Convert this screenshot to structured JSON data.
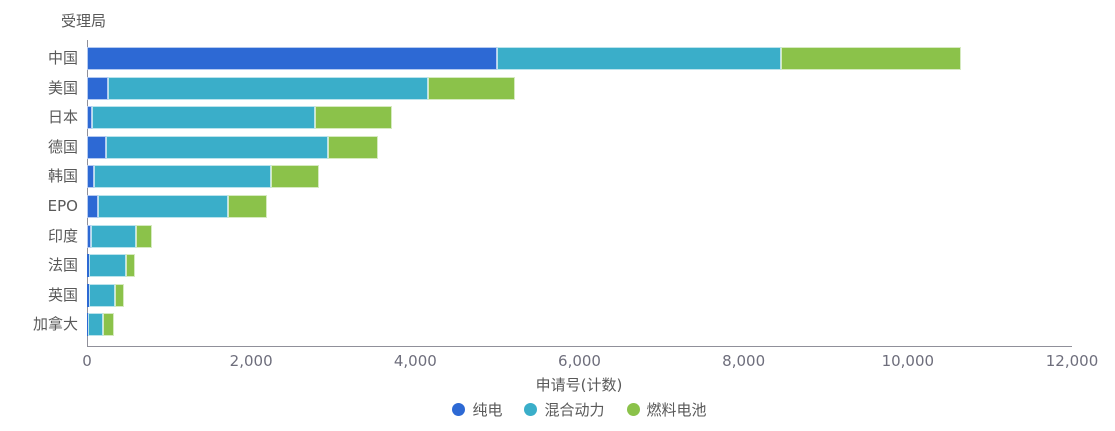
{
  "chart_data": {
    "type": "bar",
    "orientation": "horizontal",
    "stacked": true,
    "title": "受理局",
    "xlabel": "申请号(计数)",
    "categories": [
      "中国",
      "美国",
      "日本",
      "德国",
      "韩国",
      "EPO",
      "印度",
      "法国",
      "英国",
      "加拿大"
    ],
    "series": [
      {
        "name": "纯电",
        "color": "#2D69D4",
        "values": [
          5000,
          260,
          60,
          230,
          80,
          140,
          50,
          25,
          25,
          10
        ]
      },
      {
        "name": "混合动力",
        "color": "#3AAEC9",
        "values": [
          3450,
          3900,
          2720,
          2710,
          2165,
          1580,
          550,
          455,
          315,
          185
        ]
      },
      {
        "name": "燃料电池",
        "color": "#8BC24A",
        "values": [
          2200,
          1060,
          930,
          610,
          585,
          475,
          190,
          105,
          105,
          130
        ]
      }
    ],
    "totals": [
      10650,
      5220,
      3710,
      3550,
      2830,
      2195,
      790,
      585,
      445,
      325
    ],
    "xlim": [
      0,
      12000
    ],
    "xticks": [
      0,
      2000,
      4000,
      6000,
      8000,
      10000,
      12000
    ],
    "xtick_labels": [
      "0",
      "2,000",
      "4,000",
      "6,000",
      "8,000",
      "10,000",
      "12,000"
    ],
    "grid": false,
    "legend_position": "bottom"
  },
  "colors": {
    "axis_line": "#90909A",
    "text": "#595959",
    "tick_text": "#6E6E7C",
    "background": "#FFFFFF"
  }
}
